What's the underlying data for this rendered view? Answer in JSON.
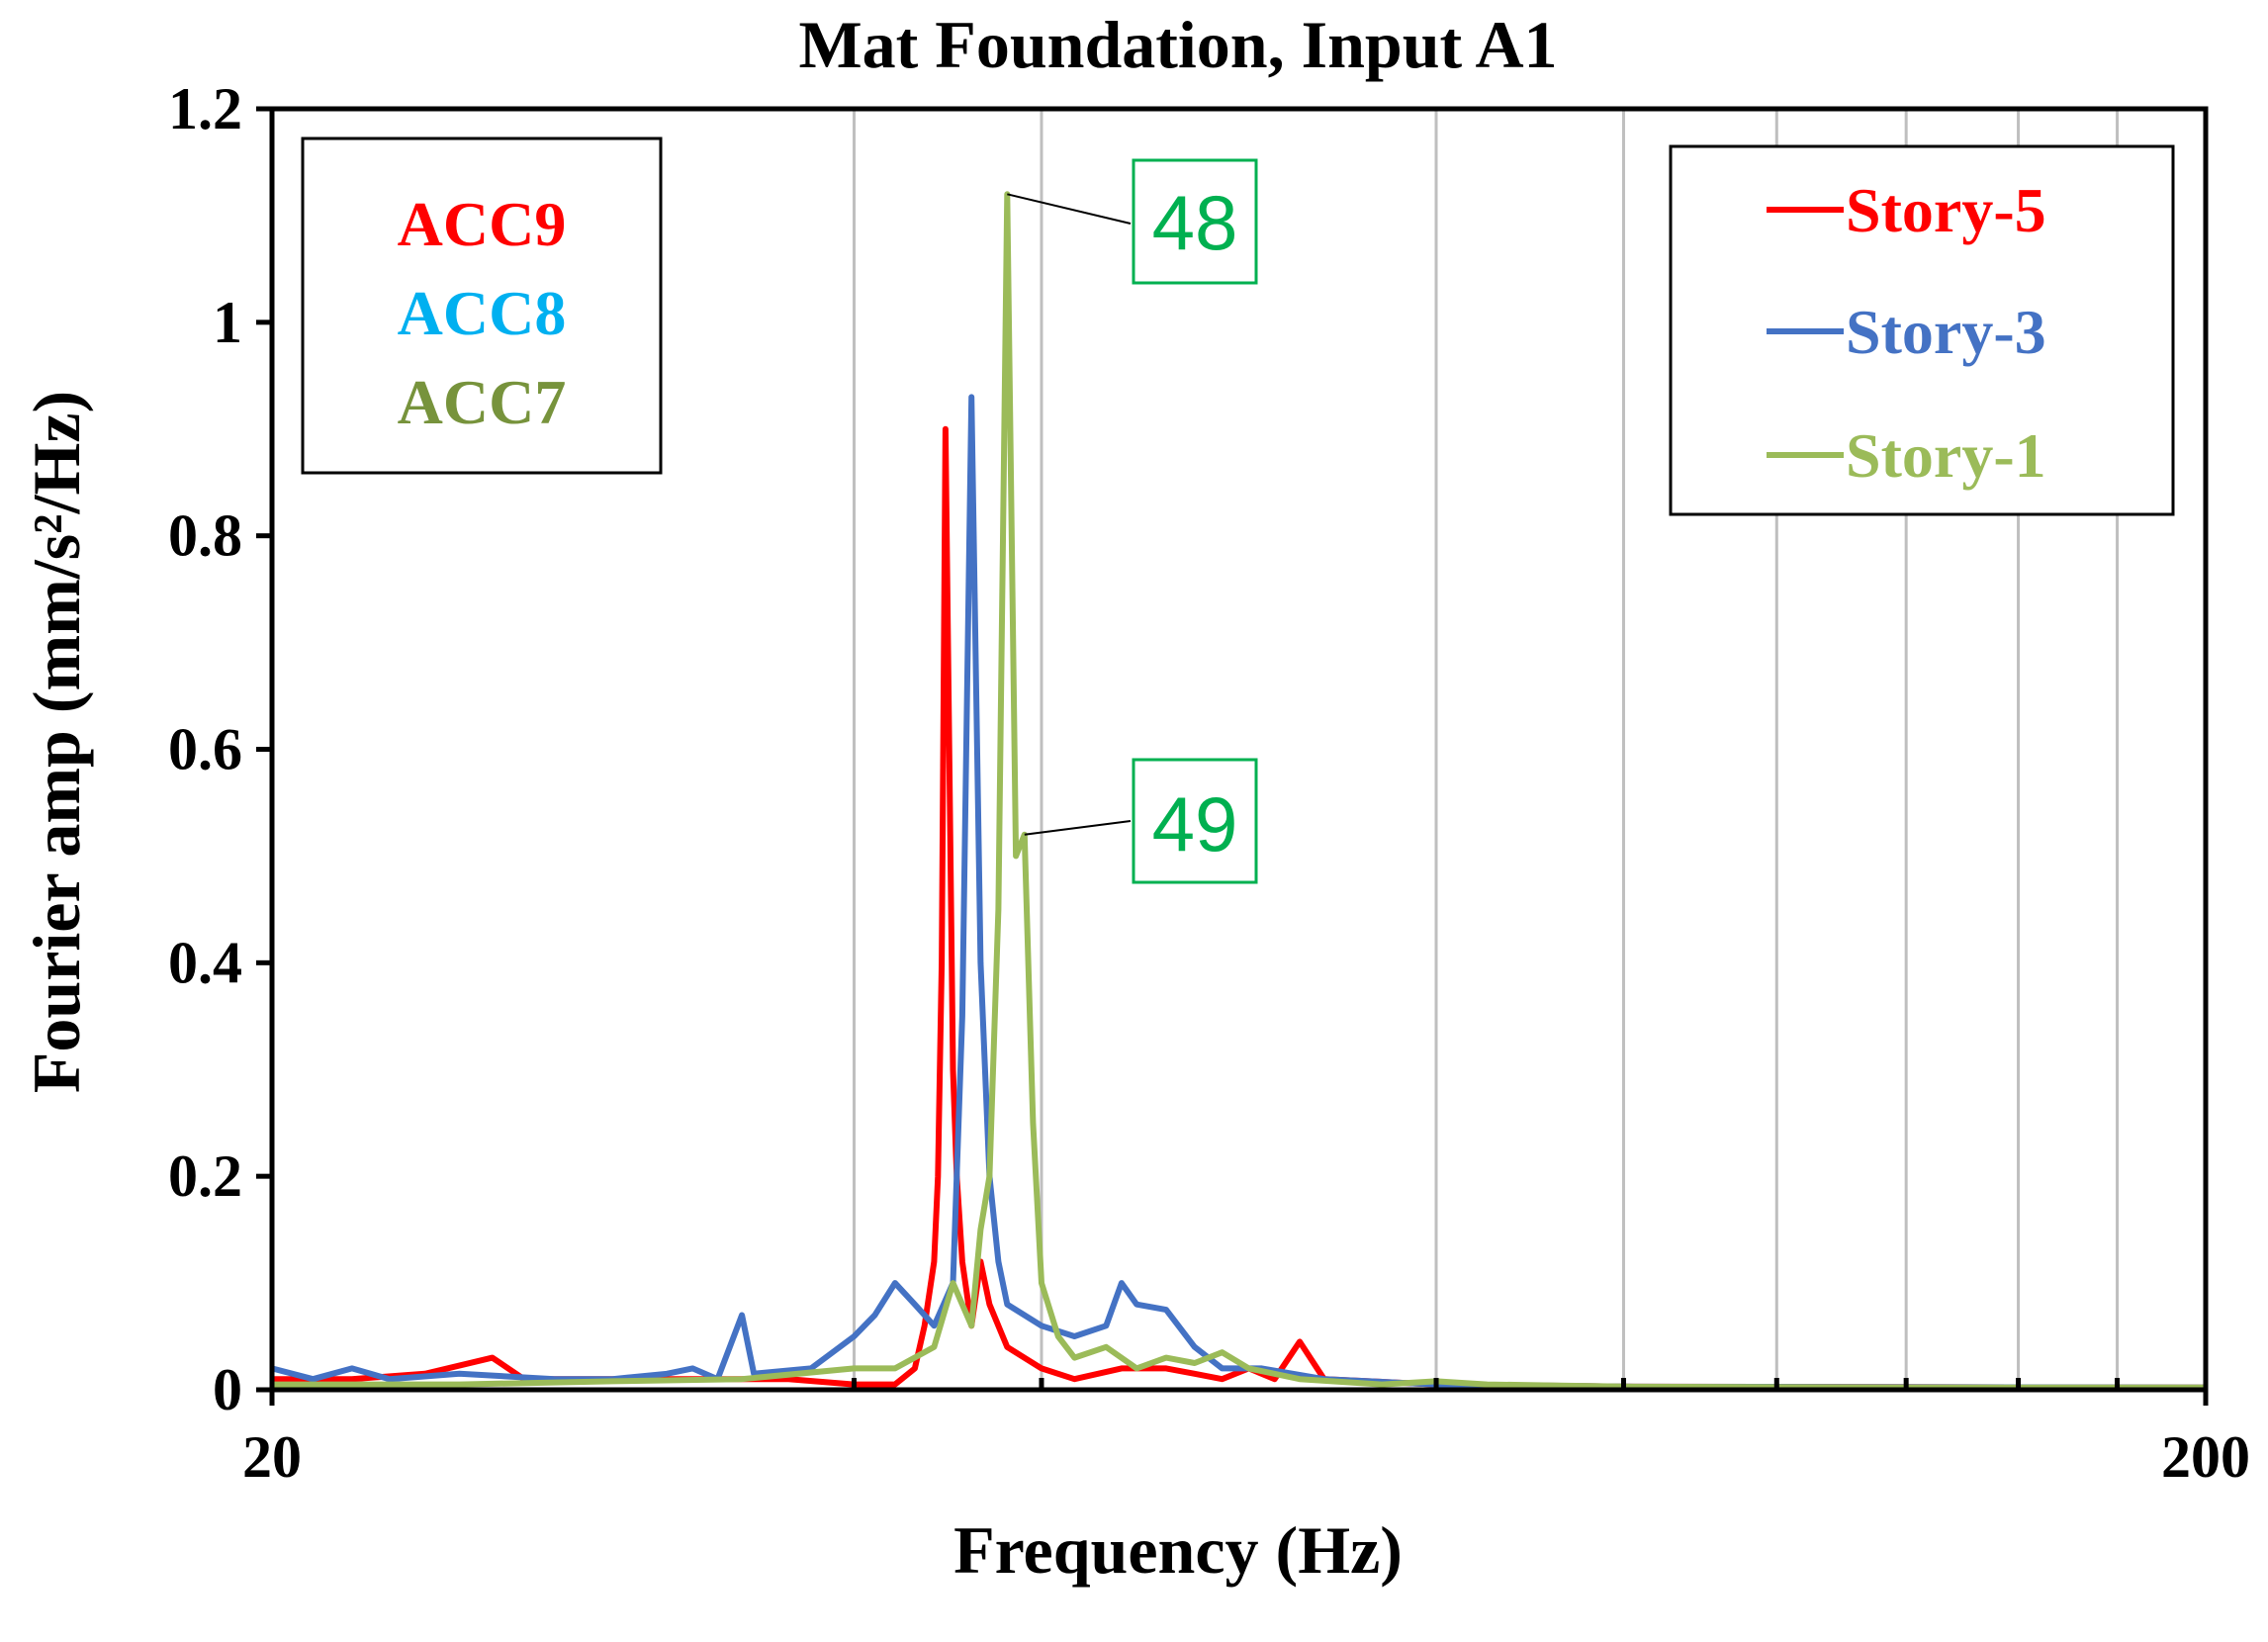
{
  "chart_data": {
    "type": "line",
    "title": "Mat Foundation, Input A1",
    "xlabel": "Frequency (Hz)",
    "ylabel": "Fourier amp (mm/s²/Hz)",
    "xscale": "log",
    "xlim": [
      20,
      200
    ],
    "ylim": [
      0,
      1.2
    ],
    "yticks": [
      "0",
      "0.2",
      "0.4",
      "0.6",
      "0.8",
      "1",
      "1.2"
    ],
    "yticks_values": [
      0,
      0.2,
      0.4,
      0.6,
      0.8,
      1.0,
      1.2
    ],
    "xticks": [
      "20",
      "200"
    ],
    "xticks_values": [
      20,
      200
    ],
    "vertical_grid": [
      40,
      50,
      80,
      100,
      120,
      140,
      160,
      180
    ],
    "sensor_box": [
      {
        "label": "ACC9",
        "color": "#ff0000"
      },
      {
        "label": "ACC8",
        "color": "#00b0f0"
      },
      {
        "label": "ACC7",
        "color": "#77933c"
      }
    ],
    "legend_position": "top-right",
    "series": [
      {
        "name": "Story-5",
        "color": "#ff0000",
        "points": [
          [
            20,
            0.01
          ],
          [
            22,
            0.01
          ],
          [
            24,
            0.015
          ],
          [
            26,
            0.03
          ],
          [
            27,
            0.01
          ],
          [
            30,
            0.01
          ],
          [
            33,
            0.01
          ],
          [
            37,
            0.01
          ],
          [
            40,
            0.005
          ],
          [
            42,
            0.005
          ],
          [
            43,
            0.02
          ],
          [
            43.5,
            0.06
          ],
          [
            44,
            0.12
          ],
          [
            44.2,
            0.2
          ],
          [
            44.4,
            0.4
          ],
          [
            44.6,
            0.9
          ],
          [
            44.8,
            0.6
          ],
          [
            45,
            0.3
          ],
          [
            45.2,
            0.2
          ],
          [
            45.5,
            0.12
          ],
          [
            46,
            0.06
          ],
          [
            46.5,
            0.12
          ],
          [
            47,
            0.08
          ],
          [
            48,
            0.04
          ],
          [
            50,
            0.02
          ],
          [
            52,
            0.01
          ],
          [
            55,
            0.02
          ],
          [
            58,
            0.02
          ],
          [
            60,
            0.015
          ],
          [
            62,
            0.01
          ],
          [
            64,
            0.02
          ],
          [
            66,
            0.01
          ],
          [
            68,
            0.045
          ],
          [
            70,
            0.01
          ],
          [
            80,
            0.005
          ],
          [
            100,
            0.003
          ],
          [
            200,
            0.002
          ]
        ]
      },
      {
        "name": "Story-3",
        "color": "#4472c4",
        "points": [
          [
            20,
            0.02
          ],
          [
            21,
            0.01
          ],
          [
            22,
            0.02
          ],
          [
            23,
            0.01
          ],
          [
            25,
            0.015
          ],
          [
            28,
            0.01
          ],
          [
            30,
            0.01
          ],
          [
            32,
            0.015
          ],
          [
            33,
            0.02
          ],
          [
            34,
            0.01
          ],
          [
            35,
            0.07
          ],
          [
            35.5,
            0.015
          ],
          [
            38,
            0.02
          ],
          [
            40,
            0.05
          ],
          [
            41,
            0.07
          ],
          [
            42,
            0.1
          ],
          [
            43,
            0.08
          ],
          [
            44,
            0.06
          ],
          [
            44.5,
            0.08
          ],
          [
            45,
            0.1
          ],
          [
            45.5,
            0.35
          ],
          [
            46,
            0.93
          ],
          [
            46.5,
            0.4
          ],
          [
            47,
            0.2
          ],
          [
            47.5,
            0.12
          ],
          [
            48,
            0.08
          ],
          [
            50,
            0.06
          ],
          [
            52,
            0.05
          ],
          [
            54,
            0.06
          ],
          [
            55,
            0.1
          ],
          [
            56,
            0.08
          ],
          [
            58,
            0.075
          ],
          [
            60,
            0.04
          ],
          [
            62,
            0.02
          ],
          [
            65,
            0.02
          ],
          [
            70,
            0.01
          ],
          [
            80,
            0.005
          ],
          [
            100,
            0.003
          ],
          [
            200,
            0.002
          ]
        ]
      },
      {
        "name": "Story-1",
        "color": "#9bbb59",
        "points": [
          [
            20,
            0.005
          ],
          [
            25,
            0.005
          ],
          [
            30,
            0.008
          ],
          [
            35,
            0.01
          ],
          [
            40,
            0.02
          ],
          [
            42,
            0.02
          ],
          [
            44,
            0.04
          ],
          [
            45,
            0.1
          ],
          [
            46,
            0.06
          ],
          [
            46.5,
            0.15
          ],
          [
            47,
            0.2
          ],
          [
            47.5,
            0.45
          ],
          [
            48,
            1.12
          ],
          [
            48.5,
            0.5
          ],
          [
            49,
            0.52
          ],
          [
            49.5,
            0.25
          ],
          [
            50,
            0.1
          ],
          [
            51,
            0.05
          ],
          [
            52,
            0.03
          ],
          [
            54,
            0.04
          ],
          [
            56,
            0.02
          ],
          [
            58,
            0.03
          ],
          [
            60,
            0.025
          ],
          [
            62,
            0.035
          ],
          [
            64,
            0.02
          ],
          [
            68,
            0.01
          ],
          [
            75,
            0.005
          ],
          [
            80,
            0.008
          ],
          [
            85,
            0.005
          ],
          [
            100,
            0.003
          ],
          [
            150,
            0.002
          ],
          [
            200,
            0.002
          ]
        ]
      }
    ],
    "annotations": [
      {
        "text": "48",
        "x": 48,
        "y": 1.12,
        "color": "#00b050"
      },
      {
        "text": "49",
        "x": 49,
        "y": 0.52,
        "color": "#00b050"
      }
    ]
  }
}
